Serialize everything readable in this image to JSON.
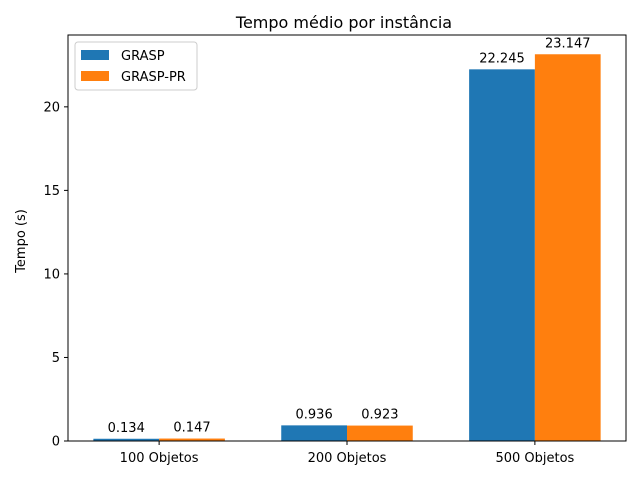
{
  "chart_data": {
    "type": "bar",
    "title": "Tempo médio por instância",
    "xlabel": "",
    "ylabel": "Tempo (s)",
    "categories": [
      "100 Objetos",
      "200 Objetos",
      "500 Objetos"
    ],
    "series": [
      {
        "name": "GRASP",
        "values": [
          0.134,
          0.936,
          22.245
        ],
        "color": "#1f77b4"
      },
      {
        "name": "GRASP-PR",
        "values": [
          0.147,
          0.923,
          23.147
        ],
        "color": "#ff7f0e"
      }
    ],
    "ylim": [
      0,
      24.3
    ],
    "yticks": [
      0,
      5,
      10,
      15,
      20
    ],
    "grid": false,
    "legend": "top-left"
  }
}
